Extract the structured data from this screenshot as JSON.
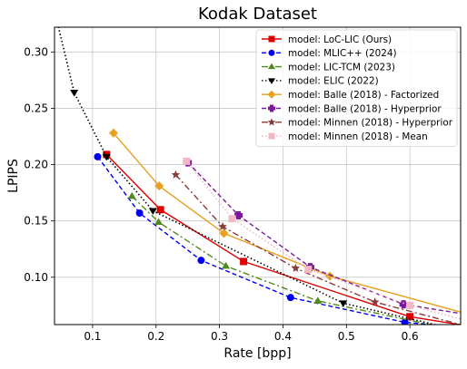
{
  "chart_data": {
    "type": "line",
    "title": "Kodak Dataset",
    "xlabel": "Rate [bpp]",
    "ylabel": "LPIPS",
    "xlim": [
      0.04,
      0.68
    ],
    "ylim": [
      0.058,
      0.322
    ],
    "xticks": [
      0.1,
      0.2,
      0.3,
      0.4,
      0.5,
      0.6
    ],
    "yticks": [
      0.1,
      0.15,
      0.2,
      0.25,
      0.3
    ],
    "xtick_labels": [
      "0.1",
      "0.2",
      "0.3",
      "0.4",
      "0.5",
      "0.6"
    ],
    "ytick_labels": [
      "0.10",
      "0.15",
      "0.20",
      "0.25",
      "0.30"
    ],
    "grid": true,
    "legend_position": "top-right",
    "series": [
      {
        "name": "model: LoC-LIC (Ours)",
        "color": "#dd0000",
        "line": "solid",
        "marker": "square",
        "x": [
          0.122,
          0.207,
          0.338,
          0.6,
          0.7
        ],
        "y": [
          0.209,
          0.16,
          0.114,
          0.065,
          0.056
        ]
      },
      {
        "name": "model: MLIC++ (2024)",
        "color": "#0000ee",
        "line": "dashed",
        "marker": "circle",
        "x": [
          0.108,
          0.174,
          0.271,
          0.412,
          0.592,
          0.7
        ],
        "y": [
          0.207,
          0.157,
          0.115,
          0.082,
          0.06,
          0.055
        ]
      },
      {
        "name": "model: LIC-TCM (2023)",
        "color": "#4e8a1e",
        "line": "dashdot",
        "marker": "triangle-up",
        "x": [
          0.162,
          0.204,
          0.31,
          0.455,
          0.7
        ],
        "y": [
          0.172,
          0.149,
          0.11,
          0.079,
          0.05
        ]
      },
      {
        "name": "model: ELIC (2022)",
        "color": "#000000",
        "line": "dotted",
        "marker": "triangle-down",
        "x": [
          0.03,
          0.071,
          0.122,
          0.195,
          0.495,
          0.7
        ],
        "y": [
          0.36,
          0.264,
          0.207,
          0.159,
          0.077,
          0.05
        ]
      },
      {
        "name": "model: Balle (2018) - Factorized",
        "color": "#e8a020",
        "line": "solid",
        "marker": "diamond",
        "x": [
          0.133,
          0.205,
          0.307,
          0.474,
          0.7
        ],
        "y": [
          0.228,
          0.181,
          0.139,
          0.101,
          0.066
        ]
      },
      {
        "name": "model: Balle (2018) - Hyperprior",
        "color": "#7a1a9a",
        "line": "dashed",
        "marker": "plus",
        "x": [
          0.25,
          0.33,
          0.443,
          0.59,
          0.7
        ],
        "y": [
          0.202,
          0.155,
          0.109,
          0.076,
          0.066
        ]
      },
      {
        "name": "model: Minnen (2018) - Hyperprior",
        "color": "#8b3a3a",
        "line": "dashdot",
        "marker": "star",
        "x": [
          0.231,
          0.305,
          0.42,
          0.545,
          0.7
        ],
        "y": [
          0.191,
          0.145,
          0.108,
          0.078,
          0.055
        ]
      },
      {
        "name": "model: Minnen (2018) - Mean",
        "color": "#f2b8c6",
        "line": "dotted",
        "marker": "square",
        "x": [
          0.248,
          0.32,
          0.44,
          0.6,
          0.7
        ],
        "y": [
          0.203,
          0.152,
          0.107,
          0.075,
          0.06
        ]
      }
    ]
  }
}
